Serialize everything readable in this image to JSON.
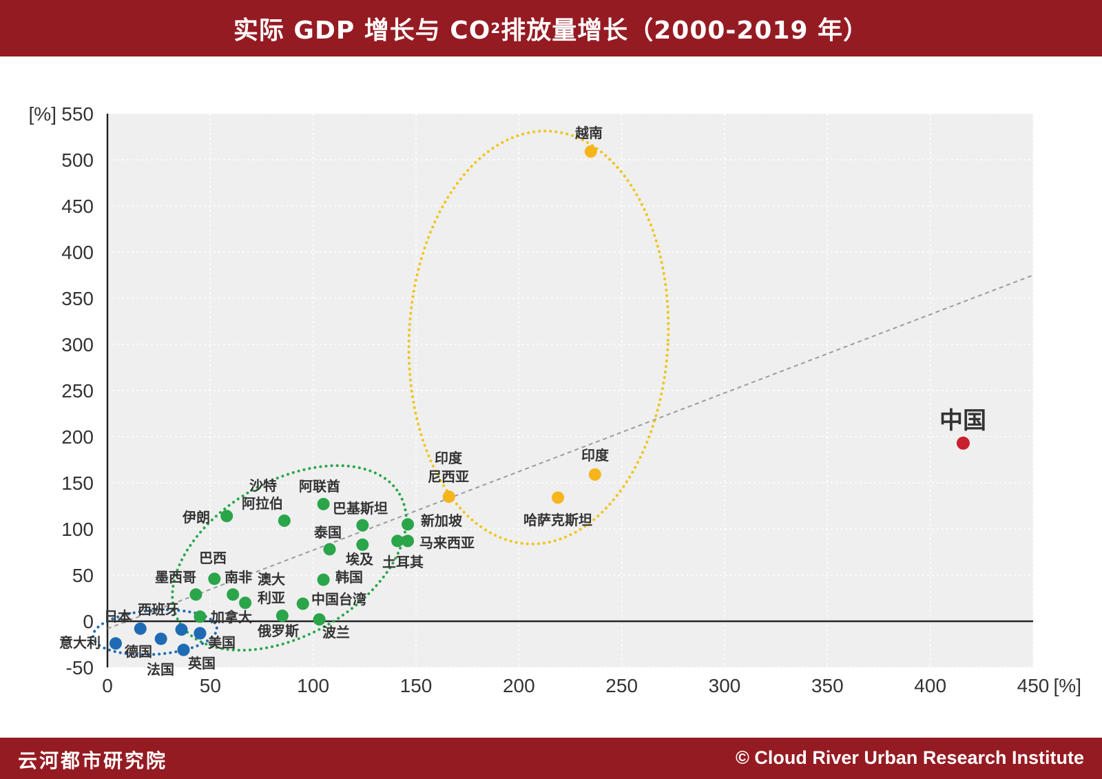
{
  "header": {
    "title_main": "实际 GDP 增长与 CO",
    "title_sub": "2",
    "title_tail": " 排放量增长（2000-2019 年）"
  },
  "footer": {
    "left": "云河都市研究院",
    "right": "© Cloud River Urban Research Institute"
  },
  "colors": {
    "brand": "#951b22",
    "blue": "#1f6bb3",
    "green": "#2aa54a",
    "yellow": "#f5b51b",
    "red": "#c8202f",
    "plot_bg": "#efefef"
  },
  "chart_data": {
    "type": "scatter",
    "title": "实际 GDP 增长与 CO2 排放量增长（2000-2019 年）",
    "xunit": "[%]",
    "yunit": "[%]",
    "xlim": [
      0,
      450
    ],
    "ylim": [
      -50,
      550
    ],
    "xticks": [
      "0",
      "50",
      "100",
      "150",
      "200",
      "250",
      "300",
      "350",
      "400",
      "450"
    ],
    "yticks": [
      "-50",
      "0",
      "50",
      "100",
      "150",
      "200",
      "250",
      "300",
      "350",
      "400",
      "450",
      "500",
      "550"
    ],
    "trend_line": {
      "from": [
        0,
        -8
      ],
      "to": [
        450,
        375
      ]
    },
    "groups": [
      {
        "color": "blue",
        "points": [
          {
            "label": "意大利",
            "x": 4,
            "y": -24
          },
          {
            "label": "日本",
            "x": 16,
            "y": -8
          },
          {
            "label": "德国",
            "x": 26,
            "y": -19
          },
          {
            "label": "法国",
            "x": 37,
            "y": -31
          },
          {
            "label": "西班牙",
            "x": 36,
            "y": -9
          },
          {
            "label": "英国",
            "x": 45,
            "y": -13
          },
          {
            "label": "美国",
            "x": 45,
            "y": -13
          }
        ]
      },
      {
        "color": "green",
        "points": [
          {
            "label": "墨西哥",
            "x": 43,
            "y": 29
          },
          {
            "label": "巴西",
            "x": 52,
            "y": 46
          },
          {
            "label": "加拿大",
            "x": 45,
            "y": 5
          },
          {
            "label": "南非",
            "x": 61,
            "y": 29
          },
          {
            "label": "澳大利亚",
            "x": 67,
            "y": 20
          },
          {
            "label": "伊朗",
            "x": 58,
            "y": 114
          },
          {
            "label": "沙特阿拉伯",
            "x": 86,
            "y": 109
          },
          {
            "label": "俄罗斯",
            "x": 85,
            "y": 6
          },
          {
            "label": "中国台湾",
            "x": 95,
            "y": 19
          },
          {
            "label": "波兰",
            "x": 103,
            "y": 2
          },
          {
            "label": "韩国",
            "x": 105,
            "y": 45
          },
          {
            "label": "泰国",
            "x": 108,
            "y": 78
          },
          {
            "label": "阿联酋",
            "x": 105,
            "y": 127
          },
          {
            "label": "埃及",
            "x": 124,
            "y": 83
          },
          {
            "label": "巴基斯坦",
            "x": 124,
            "y": 104
          },
          {
            "label": "土耳其",
            "x": 141,
            "y": 87
          },
          {
            "label": "马来西亚",
            "x": 146,
            "y": 87
          },
          {
            "label": "新加坡",
            "x": 146,
            "y": 105
          }
        ]
      },
      {
        "color": "yellow",
        "points": [
          {
            "label": "印度尼西亚",
            "x": 166,
            "y": 135
          },
          {
            "label": "哈萨克斯坦",
            "x": 219,
            "y": 134
          },
          {
            "label": "印度",
            "x": 237,
            "y": 159
          },
          {
            "label": "越南",
            "x": 235,
            "y": 509
          }
        ]
      },
      {
        "color": "red",
        "points": [
          {
            "label": "中国",
            "x": 416,
            "y": 193
          }
        ]
      }
    ]
  }
}
